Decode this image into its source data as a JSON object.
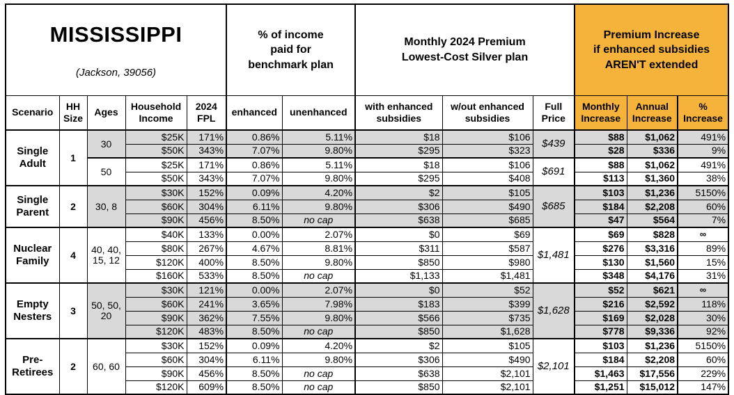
{
  "title": {
    "state": "MISSISSIPPI",
    "location": "(Jackson, 39056)"
  },
  "colors": {
    "accent_orange": "#F6B33C",
    "row_shade": "#D9D9D9",
    "border": "#000000"
  },
  "header": {
    "groups": {
      "benchmark": "% of income\npaid for\nbenchmark plan",
      "premium": "Monthly 2024 Premium\nLowest-Cost Silver plan",
      "increase": "Premium Increase\nif enhanced subsidies\nAREN'T extended"
    },
    "columns": {
      "scenario": "Scenario",
      "hh_size": "HH\nSize",
      "ages": "Ages",
      "income": "Household\nIncome",
      "fpl": "2024\nFPL",
      "enhanced": "enhanced",
      "unenhanced": "unenhanced",
      "with_sub": "with enhanced\nsubsidies",
      "wout_sub": "w/out enhanced\nsubsidies",
      "full_price": "Full\nPrice",
      "monthly": "Monthly\nIncrease",
      "annual": "Annual\nIncrease",
      "pct": "%\nIncrease"
    }
  },
  "groups": [
    {
      "scenario": "Single Adult",
      "hh_size": "1",
      "subgroups": [
        {
          "ages": "30",
          "shaded": true,
          "full_price": "$439",
          "rows": [
            {
              "income": "$25K",
              "fpl": "171%",
              "enhanced": "0.86%",
              "unenhanced": "5.11%",
              "with_sub": "$18",
              "wout_sub": "$106",
              "monthly": "$88",
              "annual": "$1,062",
              "pct": "491%"
            },
            {
              "income": "$50K",
              "fpl": "343%",
              "enhanced": "7.07%",
              "unenhanced": "9.80%",
              "with_sub": "$295",
              "wout_sub": "$323",
              "monthly": "$28",
              "annual": "$336",
              "pct": "9%"
            }
          ]
        },
        {
          "ages": "50",
          "shaded": false,
          "full_price": "$691",
          "rows": [
            {
              "income": "$25K",
              "fpl": "171%",
              "enhanced": "0.86%",
              "unenhanced": "5.11%",
              "with_sub": "$18",
              "wout_sub": "$106",
              "monthly": "$88",
              "annual": "$1,062",
              "pct": "491%"
            },
            {
              "income": "$50K",
              "fpl": "343%",
              "enhanced": "7.07%",
              "unenhanced": "9.80%",
              "with_sub": "$295",
              "wout_sub": "$408",
              "monthly": "$113",
              "annual": "$1,360",
              "pct": "38%"
            }
          ]
        }
      ]
    },
    {
      "scenario": "Single Parent",
      "hh_size": "2",
      "subgroups": [
        {
          "ages": "30, 8",
          "shaded": true,
          "full_price": "$685",
          "rows": [
            {
              "income": "$30K",
              "fpl": "152%",
              "enhanced": "0.09%",
              "unenhanced": "4.20%",
              "with_sub": "$2",
              "wout_sub": "$105",
              "monthly": "$103",
              "annual": "$1,236",
              "pct": "5150%"
            },
            {
              "income": "$60K",
              "fpl": "304%",
              "enhanced": "6.11%",
              "unenhanced": "9.80%",
              "with_sub": "$306",
              "wout_sub": "$490",
              "monthly": "$184",
              "annual": "$2,208",
              "pct": "60%"
            },
            {
              "income": "$90K",
              "fpl": "456%",
              "enhanced": "8.50%",
              "unenhanced": "no cap",
              "with_sub": "$638",
              "wout_sub": "$685",
              "monthly": "$47",
              "annual": "$564",
              "pct": "7%"
            }
          ]
        }
      ]
    },
    {
      "scenario": "Nuclear Family",
      "hh_size": "4",
      "subgroups": [
        {
          "ages": "40, 40, 15, 12",
          "shaded": false,
          "full_price": "$1,481",
          "rows": [
            {
              "income": "$40K",
              "fpl": "133%",
              "enhanced": "0.00%",
              "unenhanced": "2.07%",
              "with_sub": "$0",
              "wout_sub": "$69",
              "monthly": "$69",
              "annual": "$828",
              "pct": "∞"
            },
            {
              "income": "$80K",
              "fpl": "267%",
              "enhanced": "4.67%",
              "unenhanced": "8.81%",
              "with_sub": "$311",
              "wout_sub": "$587",
              "monthly": "$276",
              "annual": "$3,316",
              "pct": "89%"
            },
            {
              "income": "$120K",
              "fpl": "400%",
              "enhanced": "8.50%",
              "unenhanced": "9.80%",
              "with_sub": "$850",
              "wout_sub": "$980",
              "monthly": "$130",
              "annual": "$1,560",
              "pct": "15%"
            },
            {
              "income": "$160K",
              "fpl": "533%",
              "enhanced": "8.50%",
              "unenhanced": "no cap",
              "with_sub": "$1,133",
              "wout_sub": "$1,481",
              "monthly": "$348",
              "annual": "$4,176",
              "pct": "31%"
            }
          ]
        }
      ]
    },
    {
      "scenario": "Empty Nesters",
      "hh_size": "3",
      "subgroups": [
        {
          "ages": "50, 50, 20",
          "shaded": true,
          "full_price": "$1,628",
          "rows": [
            {
              "income": "$30K",
              "fpl": "121%",
              "enhanced": "0.00%",
              "unenhanced": "2.07%",
              "with_sub": "$0",
              "wout_sub": "$52",
              "monthly": "$52",
              "annual": "$621",
              "pct": "∞"
            },
            {
              "income": "$60K",
              "fpl": "241%",
              "enhanced": "3.65%",
              "unenhanced": "7.98%",
              "with_sub": "$183",
              "wout_sub": "$399",
              "monthly": "$216",
              "annual": "$2,592",
              "pct": "118%"
            },
            {
              "income": "$90K",
              "fpl": "362%",
              "enhanced": "7.55%",
              "unenhanced": "9.80%",
              "with_sub": "$566",
              "wout_sub": "$735",
              "monthly": "$169",
              "annual": "$2,028",
              "pct": "30%"
            },
            {
              "income": "$120K",
              "fpl": "483%",
              "enhanced": "8.50%",
              "unenhanced": "no cap",
              "with_sub": "$850",
              "wout_sub": "$1,628",
              "monthly": "$778",
              "annual": "$9,336",
              "pct": "92%"
            }
          ]
        }
      ]
    },
    {
      "scenario": "Pre-Retirees",
      "hh_size": "2",
      "subgroups": [
        {
          "ages": "60, 60",
          "shaded": false,
          "full_price": "$2,101",
          "rows": [
            {
              "income": "$30K",
              "fpl": "152%",
              "enhanced": "0.09%",
              "unenhanced": "4.20%",
              "with_sub": "$2",
              "wout_sub": "$105",
              "monthly": "$103",
              "annual": "$1,236",
              "pct": "5150%"
            },
            {
              "income": "$60K",
              "fpl": "304%",
              "enhanced": "6.11%",
              "unenhanced": "9.80%",
              "with_sub": "$306",
              "wout_sub": "$490",
              "monthly": "$184",
              "annual": "$2,208",
              "pct": "60%"
            },
            {
              "income": "$90K",
              "fpl": "456%",
              "enhanced": "8.50%",
              "unenhanced": "no cap",
              "with_sub": "$638",
              "wout_sub": "$2,101",
              "monthly": "$1,463",
              "annual": "$17,556",
              "pct": "229%"
            },
            {
              "income": "$120K",
              "fpl": "609%",
              "enhanced": "8.50%",
              "unenhanced": "no cap",
              "with_sub": "$850",
              "wout_sub": "$2,101",
              "monthly": "$1,251",
              "annual": "$15,012",
              "pct": "147%"
            }
          ]
        }
      ]
    }
  ]
}
